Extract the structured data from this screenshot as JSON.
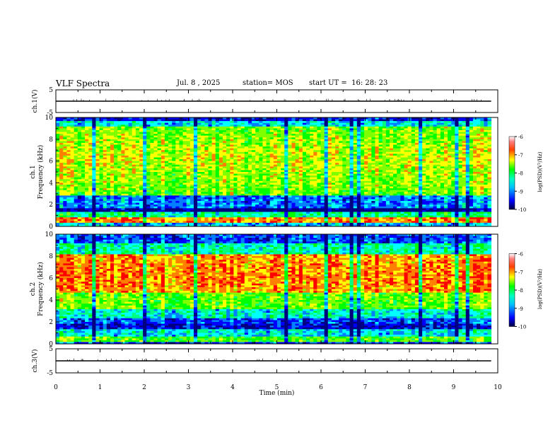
{
  "header": {
    "title": "VLF Spectra",
    "date": "Jul. 8 , 2025",
    "station": "station= MOS",
    "start_ut": "start UT =  16: 28: 23"
  },
  "chart_data": [
    {
      "type": "line",
      "title": "ch.1(V)",
      "ylabel": "ch.1(V)",
      "ylim": [
        -5,
        5
      ],
      "yticks": [
        "5",
        "-5"
      ],
      "x": [
        0,
        9.85
      ],
      "y": [
        0,
        0
      ],
      "xlim": [
        0,
        10
      ]
    },
    {
      "type": "heatmap",
      "title": "ch.1 Frequency (kHz)",
      "ylabel_top": "ch.1",
      "ylabel": "Frequency (kHz)",
      "ylim": [
        0,
        10
      ],
      "yticks": [
        "0",
        "2",
        "4",
        "6",
        "8",
        "10"
      ],
      "xlim": [
        0,
        10
      ],
      "x_data_end": 9.85,
      "colorbar": {
        "label": "log(PSD)(V²/Hz)",
        "range": [
          -10,
          -6
        ],
        "ticks": [
          "-6",
          "-7",
          "-8",
          "-9",
          "-10"
        ]
      }
    },
    {
      "type": "heatmap",
      "title": "ch.2 Frequency (kHz)",
      "ylabel_top": "ch.2",
      "ylabel": "Frequency (kHz)",
      "ylim": [
        0,
        10
      ],
      "yticks": [
        "0",
        "2",
        "4",
        "6",
        "8",
        "10"
      ],
      "xlim": [
        0,
        10
      ],
      "x_data_end": 9.85,
      "colorbar": {
        "label": "log(PSD)(V²/Hz)",
        "range": [
          -10,
          -6
        ],
        "ticks": [
          "-6",
          "-7",
          "-8",
          "-9",
          "-10"
        ]
      }
    },
    {
      "type": "line",
      "title": "ch.3(V)",
      "ylabel": "ch.3(V)",
      "ylim": [
        -5,
        5
      ],
      "yticks": [
        "5",
        "-5"
      ],
      "x": [
        0,
        9.85
      ],
      "y": [
        0,
        0
      ],
      "xlim": [
        0,
        10
      ],
      "xlabel": "Time (min)",
      "xticks": [
        "0",
        "1",
        "2",
        "3",
        "4",
        "5",
        "6",
        "7",
        "8",
        "9",
        "10"
      ]
    }
  ],
  "colormap": [
    "#000080",
    "#0000ff",
    "#0080ff",
    "#00ffff",
    "#00ff80",
    "#00ff00",
    "#80ff00",
    "#ffff00",
    "#ff8000",
    "#ff0000"
  ]
}
